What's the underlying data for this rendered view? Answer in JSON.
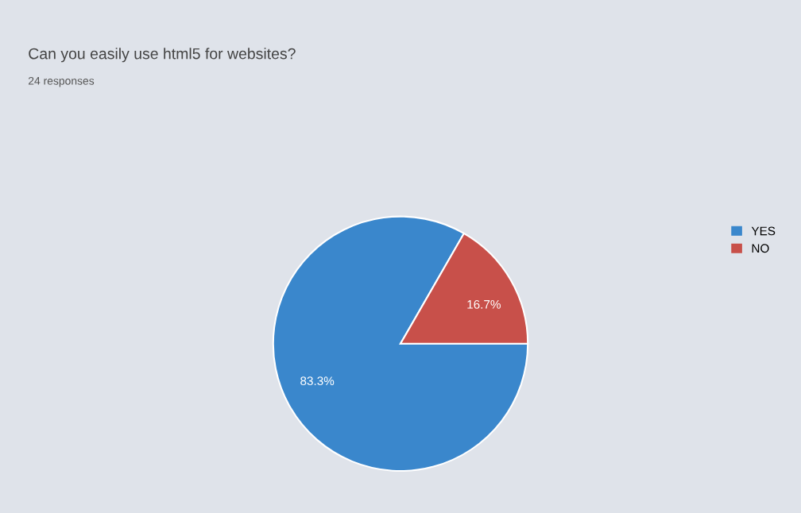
{
  "chart_data": {
    "type": "pie",
    "title": "Can you easily use html5 for websites?",
    "subtitle": "24 responses",
    "categories": [
      "YES",
      "NO"
    ],
    "values": [
      83.3,
      16.7
    ],
    "colors": [
      "#3a87cc",
      "#c8504a"
    ],
    "value_labels": [
      "83.3%",
      "16.7%"
    ],
    "legend": "right"
  }
}
